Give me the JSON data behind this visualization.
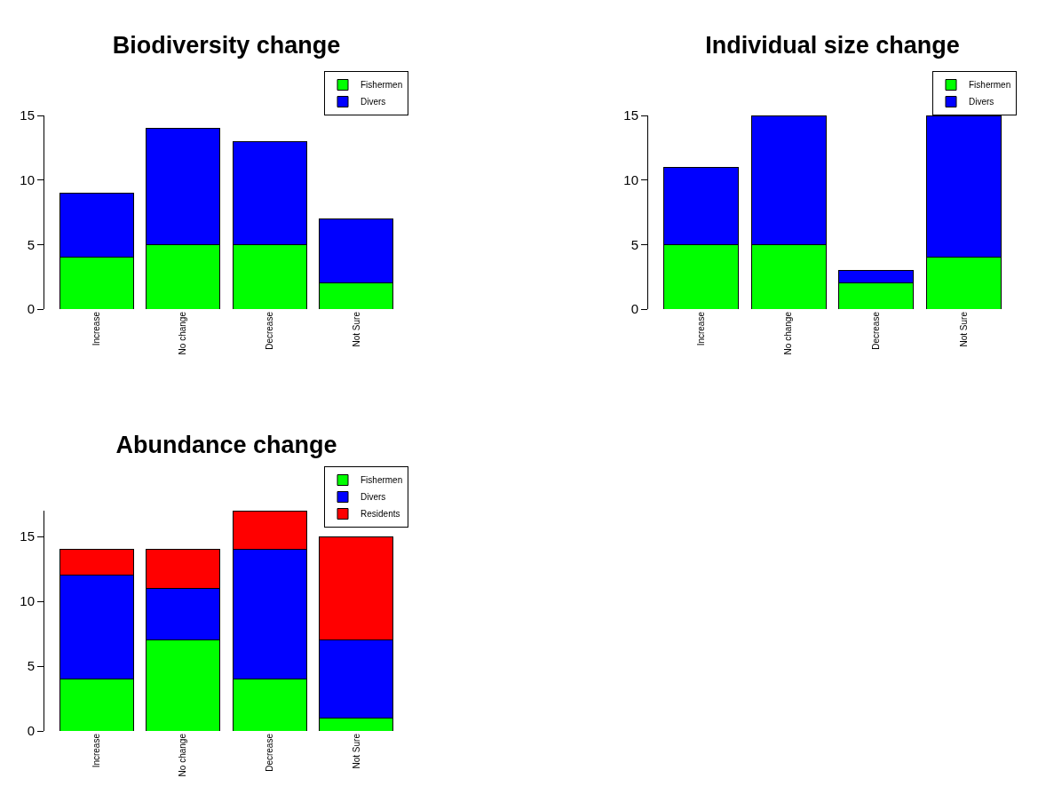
{
  "chart_data": [
    {
      "type": "bar",
      "title": "Biodiversity change",
      "categories": [
        "Increase",
        "No change",
        "Decrease",
        "Not Sure"
      ],
      "stacked": true,
      "legend": "top right",
      "grid": false,
      "ylim": [
        0,
        15
      ],
      "yticks": [
        0,
        5,
        10,
        15
      ],
      "series": [
        {
          "name": "Fishermen",
          "color": "#00ff00",
          "values": [
            4,
            5,
            5,
            2
          ]
        },
        {
          "name": "Divers",
          "color": "#0000ff",
          "values": [
            5,
            9,
            8,
            5
          ]
        }
      ]
    },
    {
      "type": "bar",
      "title": "Individual size change",
      "categories": [
        "Increase",
        "No change",
        "Decrease",
        "Not Sure"
      ],
      "stacked": true,
      "legend": "top right",
      "grid": false,
      "ylim": [
        0,
        15
      ],
      "yticks": [
        0,
        5,
        10,
        15
      ],
      "series": [
        {
          "name": "Fishermen",
          "color": "#00ff00",
          "values": [
            5,
            5,
            2,
            4
          ]
        },
        {
          "name": "Divers",
          "color": "#0000ff",
          "values": [
            6,
            10,
            1,
            11
          ]
        }
      ]
    },
    {
      "type": "bar",
      "title": "Abundance change",
      "categories": [
        "Increase",
        "No change",
        "Decrease",
        "Not Sure"
      ],
      "stacked": true,
      "legend": "top right",
      "grid": false,
      "ylim": [
        0,
        17
      ],
      "yticks": [
        0,
        5,
        10,
        15
      ],
      "series": [
        {
          "name": "Fishermen",
          "color": "#00ff00",
          "values": [
            4,
            7,
            4,
            1
          ]
        },
        {
          "name": "Divers",
          "color": "#0000ff",
          "values": [
            8,
            4,
            10,
            6
          ]
        },
        {
          "name": "Residents",
          "color": "#ff0000",
          "values": [
            2,
            3,
            3,
            8
          ]
        }
      ]
    }
  ]
}
